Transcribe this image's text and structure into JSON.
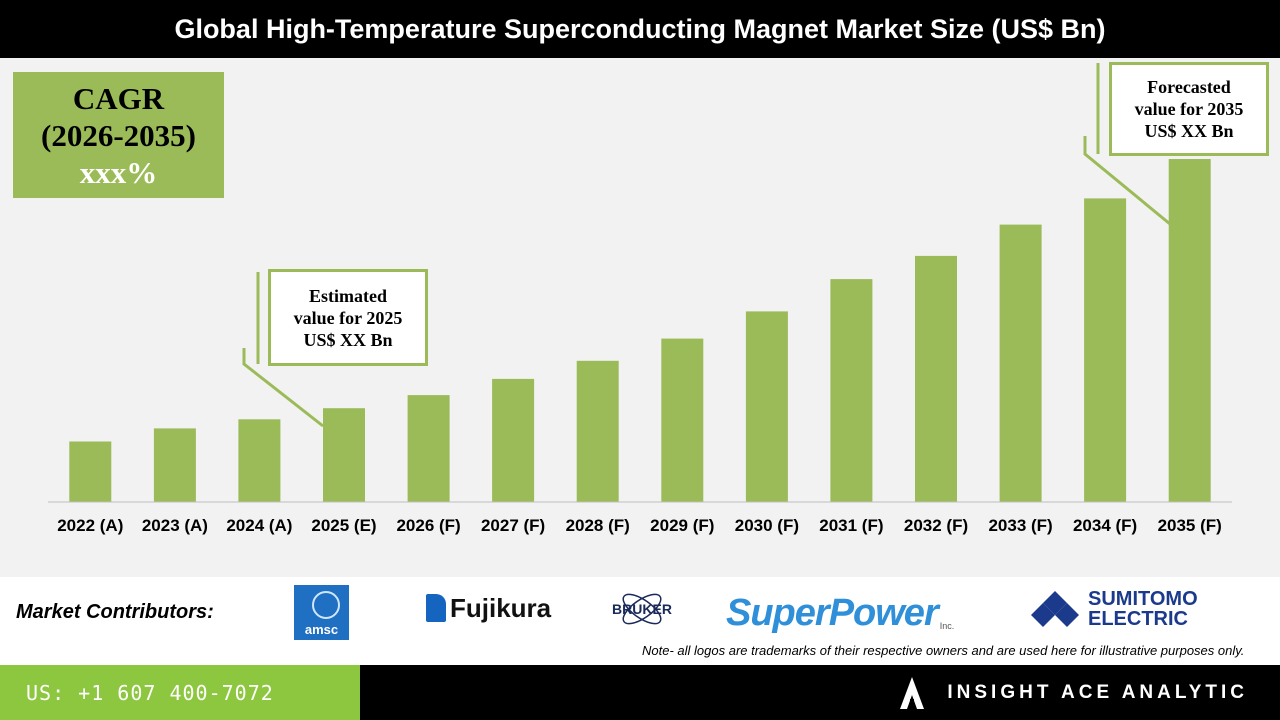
{
  "title": "Global High-Temperature Superconducting Magnet Market Size (US$ Bn)",
  "cagr": {
    "line1": "CAGR",
    "line2": "(2026-2035)",
    "line3": "xxx%"
  },
  "callouts": {
    "estimated": {
      "line1": "Estimated",
      "line2": "value for 2025",
      "line3": "US$ XX Bn"
    },
    "forecasted": {
      "line1": "Forecasted",
      "line2": "value for 2035",
      "line3": "US$ XX Bn"
    }
  },
  "chart_data": {
    "type": "bar",
    "categories": [
      "2022 (A)",
      "2023 (A)",
      "2024 (A)",
      "2025 (E)",
      "2026 (F)",
      "2027 (F)",
      "2028 (F)",
      "2029 (F)",
      "2030 (F)",
      "2031 (F)",
      "2032 (F)",
      "2033 (F)",
      "2034 (F)",
      "2035 (F)"
    ],
    "values": [
      60,
      73,
      82,
      93,
      106,
      122,
      140,
      162,
      189,
      221,
      244,
      275,
      301,
      340
    ],
    "ylim": [
      0,
      345
    ],
    "bar_color": "#9bbb59",
    "grid": false,
    "xlabel": "",
    "ylabel": ""
  },
  "contributors": {
    "label": "Market Contributors:",
    "logos": {
      "amsc": "amsc",
      "fujikura": "Fujikura",
      "bruker": "BRUKER",
      "superpower": "SuperPower",
      "superpower_suffix": "Inc.",
      "sumitomo_line1": "SUMITOMO",
      "sumitomo_line2": "ELECTRIC"
    }
  },
  "note": "Note- all logos are trademarks of their respective owners and are used here for illustrative purposes only.",
  "footer": {
    "phone": "US: +1 607 400-7072",
    "brand": "INSIGHT ACE ANALYTIC"
  },
  "colors": {
    "accent": "#9bbb59",
    "footer_green": "#8dc63f",
    "dark": "#000000"
  }
}
